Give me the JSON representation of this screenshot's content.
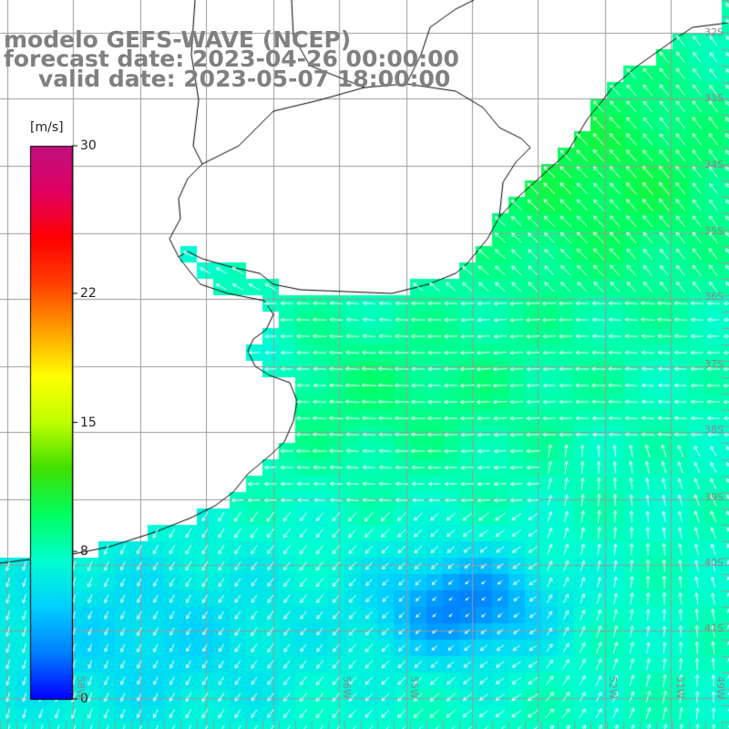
{
  "title": {
    "line1": "modelo GEFS-WAVE (NCEP)",
    "line2": "forecast date: 2023-04-26 00:00:00",
    "line3": "valid date: 2023-05-07 18:00:00"
  },
  "colorbar": {
    "unit": "[m/s]",
    "min": 0,
    "max": 30,
    "ticks": [
      {
        "label": "30",
        "value": 30
      },
      {
        "label": "22",
        "value": 22
      },
      {
        "label": "15",
        "value": 15
      },
      {
        "label": "8",
        "value": 8
      },
      {
        "label": "0",
        "value": 0
      }
    ],
    "colors": [
      "#0000ff",
      "#0080ff",
      "#00d0ff",
      "#00ffd0",
      "#00ff60",
      "#40e000",
      "#c0ff00",
      "#ffff00",
      "#ffa000",
      "#ff4000",
      "#ff0000",
      "#e00060",
      "#c01080"
    ]
  },
  "lat_labels": [
    "32S",
    "33S",
    "34S",
    "35S",
    "36S",
    "37S",
    "38S",
    "39S",
    "40S",
    "41S"
  ],
  "lon_labels": [
    "58W",
    "56W",
    "55W",
    "52W",
    "51W",
    "49W"
  ],
  "colors": {
    "land": "#ffffff",
    "grid": "#9a9a9a",
    "coast": "#000000",
    "arrow": "#ffffff",
    "title": "#808080"
  }
}
